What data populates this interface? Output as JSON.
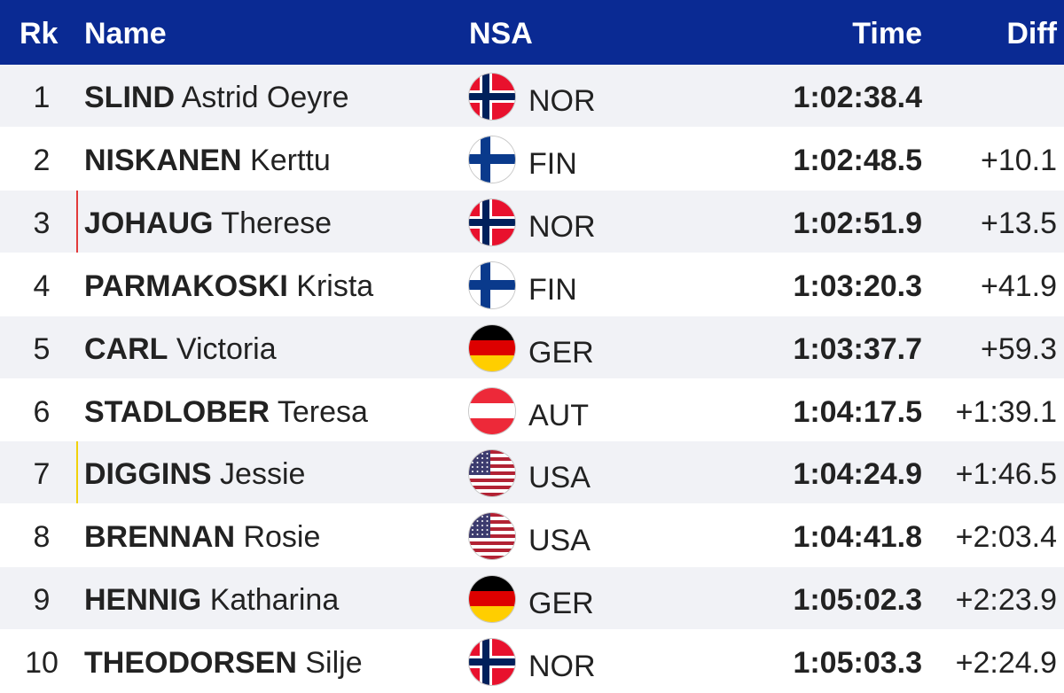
{
  "header": {
    "rk": "Rk",
    "name": "Name",
    "nsa": "NSA",
    "time": "Time",
    "diff": "Diff"
  },
  "rows": [
    {
      "rank": "1",
      "last": "SLIND",
      "first": "Astrid Oeyre",
      "nsa": "NOR",
      "flag": "norway-flag-icon",
      "time": "1:02:38.4",
      "diff": "",
      "marker": ""
    },
    {
      "rank": "2",
      "last": "NISKANEN",
      "first": "Kerttu",
      "nsa": "FIN",
      "flag": "finland-flag-icon",
      "time": "1:02:48.5",
      "diff": "+10.1",
      "marker": ""
    },
    {
      "rank": "3",
      "last": "JOHAUG",
      "first": "Therese",
      "nsa": "NOR",
      "flag": "norway-flag-icon",
      "time": "1:02:51.9",
      "diff": "+13.5",
      "marker": "#e23a3a"
    },
    {
      "rank": "4",
      "last": "PARMAKOSKI",
      "first": "Krista",
      "nsa": "FIN",
      "flag": "finland-flag-icon",
      "time": "1:03:20.3",
      "diff": "+41.9",
      "marker": ""
    },
    {
      "rank": "5",
      "last": "CARL",
      "first": "Victoria",
      "nsa": "GER",
      "flag": "germany-flag-icon",
      "time": "1:03:37.7",
      "diff": "+59.3",
      "marker": ""
    },
    {
      "rank": "6",
      "last": "STADLOBER",
      "first": "Teresa",
      "nsa": "AUT",
      "flag": "austria-flag-icon",
      "time": "1:04:17.5",
      "diff": "+1:39.1",
      "marker": ""
    },
    {
      "rank": "7",
      "last": "DIGGINS",
      "first": "Jessie",
      "nsa": "USA",
      "flag": "usa-flag-icon",
      "time": "1:04:24.9",
      "diff": "+1:46.5",
      "marker": "#f1d20a"
    },
    {
      "rank": "8",
      "last": "BRENNAN",
      "first": "Rosie",
      "nsa": "USA",
      "flag": "usa-flag-icon",
      "time": "1:04:41.8",
      "diff": "+2:03.4",
      "marker": ""
    },
    {
      "rank": "9",
      "last": "HENNIG",
      "first": "Katharina",
      "nsa": "GER",
      "flag": "germany-flag-icon",
      "time": "1:05:02.3",
      "diff": "+2:23.9",
      "marker": ""
    },
    {
      "rank": "10",
      "last": "THEODORSEN",
      "first": "Silje",
      "nsa": "NOR",
      "flag": "norway-flag-icon",
      "time": "1:05:03.3",
      "diff": "+2:24.9",
      "marker": ""
    }
  ],
  "colors": {
    "header_bg": "#0a2a93",
    "odd_row": "#f1f2f6",
    "even_row": "#ffffff"
  }
}
